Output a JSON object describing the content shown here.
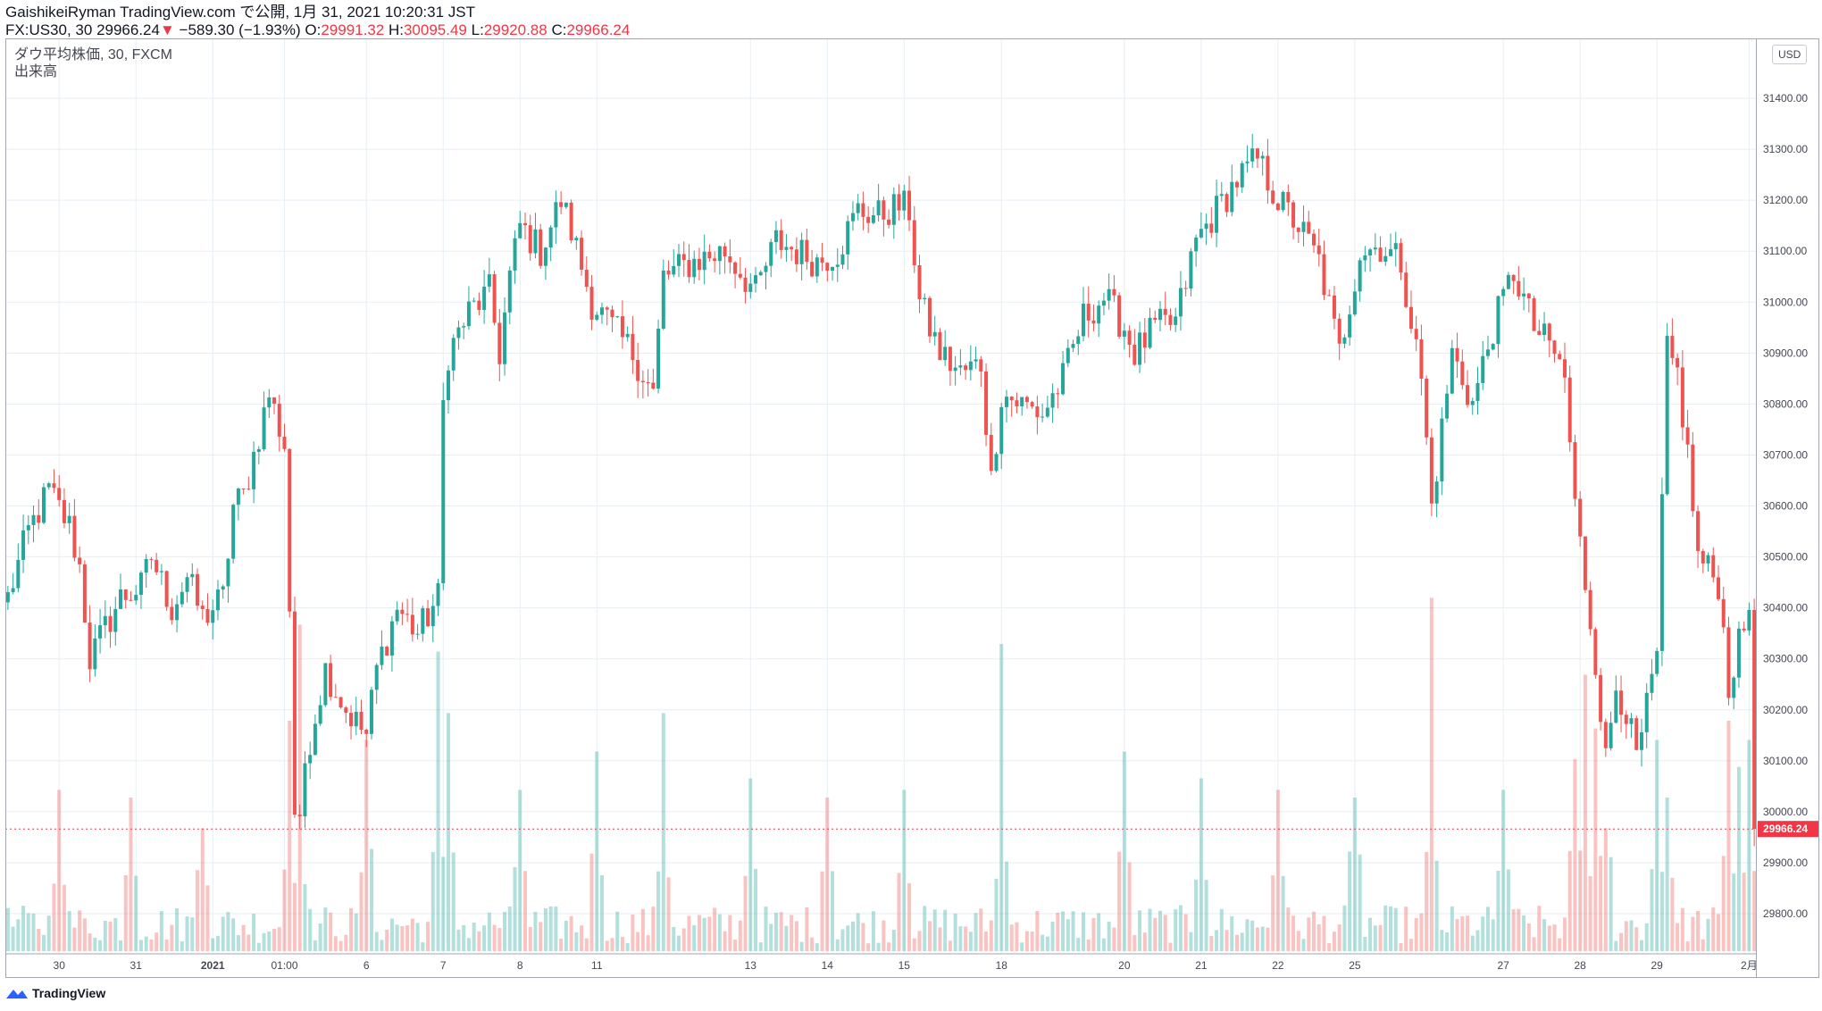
{
  "header": {
    "published": "GaishikeiRyman TradingView.com で公開, 1月 31, 2021 10:20:31 JST",
    "symbol": "FX:US30, 30",
    "last": "29966.24",
    "arrow": "▼",
    "change": "−589.30 (−1.93%)",
    "o_label": "O:",
    "o_value": "29991.32",
    "h_label": "H:",
    "h_value": "30095.49",
    "l_label": "L:",
    "l_value": "29920.88",
    "c_label": "C:",
    "c_value": "29966.24"
  },
  "legend": {
    "series": "ダウ平均株価, 30, FXCM",
    "volume": "出来高"
  },
  "axis": {
    "currency": "USD"
  },
  "footer": {
    "brand": "TradingView"
  },
  "colors": {
    "up": "#26a69a",
    "down": "#ef5350",
    "grid": "#e6eef3",
    "price_line": "#f23645"
  },
  "chart_data": {
    "type": "candlestick",
    "title": "ダウ平均株価, 30, FXCM",
    "ylim": [
      29730,
      31500
    ],
    "yticks": [
      29800,
      29900,
      30000,
      30100,
      30200,
      30300,
      30400,
      30500,
      30600,
      30700,
      30800,
      30900,
      31000,
      31100,
      31200,
      31300,
      31400
    ],
    "ytick_labels": [
      "29800.00",
      "29900.00",
      "30000.00",
      "30100.00",
      "30200.00",
      "30300.00",
      "30400.00",
      "30500.00",
      "30600.00",
      "30700.00",
      "30800.00",
      "30900.00",
      "31000.00",
      "31100.00",
      "31200.00",
      "31300.00",
      "31400.00"
    ],
    "xtick_labels": [
      "30",
      "31",
      "2021",
      "01:00",
      "6",
      "7",
      "8",
      "11",
      "13",
      "14",
      "15",
      "18",
      "20",
      "21",
      "22",
      "25",
      "27",
      "28",
      "29",
      "2月"
    ],
    "xtick_index": [
      10,
      25,
      40,
      54,
      70,
      85,
      100,
      115,
      145,
      160,
      175,
      194,
      218,
      233,
      248,
      263,
      292,
      307,
      322,
      340
    ],
    "n_bars": 342,
    "last_price": 29966.24,
    "last_price_label": "29966.24",
    "close_path": [
      [
        0,
        30420
      ],
      [
        4,
        30550
      ],
      [
        8,
        30630
      ],
      [
        12,
        30560
      ],
      [
        14,
        30480
      ],
      [
        16,
        30300
      ],
      [
        18,
        30340
      ],
      [
        22,
        30420
      ],
      [
        26,
        30440
      ],
      [
        28,
        30500
      ],
      [
        32,
        30400
      ],
      [
        35,
        30460
      ],
      [
        38,
        30380
      ],
      [
        42,
        30420
      ],
      [
        44,
        30600
      ],
      [
        46,
        30620
      ],
      [
        48,
        30700
      ],
      [
        51,
        30820
      ],
      [
        54,
        30720
      ],
      [
        55,
        30400
      ],
      [
        56,
        30000
      ],
      [
        57,
        29960
      ],
      [
        58,
        30100
      ],
      [
        62,
        30280
      ],
      [
        66,
        30200
      ],
      [
        70,
        30150
      ],
      [
        72,
        30280
      ],
      [
        76,
        30400
      ],
      [
        80,
        30350
      ],
      [
        84,
        30420
      ],
      [
        85,
        30800
      ],
      [
        86,
        30900
      ],
      [
        90,
        30980
      ],
      [
        94,
        31020
      ],
      [
        96,
        30900
      ],
      [
        98,
        31050
      ],
      [
        100,
        31150
      ],
      [
        104,
        31100
      ],
      [
        108,
        31200
      ],
      [
        110,
        31140
      ],
      [
        114,
        31000
      ],
      [
        118,
        30950
      ],
      [
        122,
        30900
      ],
      [
        126,
        30820
      ],
      [
        128,
        31050
      ],
      [
        134,
        31080
      ],
      [
        140,
        31100
      ],
      [
        146,
        31020
      ],
      [
        150,
        31120
      ],
      [
        154,
        31100
      ],
      [
        158,
        31080
      ],
      [
        162,
        31100
      ],
      [
        166,
        31180
      ],
      [
        170,
        31170
      ],
      [
        174,
        31190
      ],
      [
        176,
        31180
      ],
      [
        178,
        31000
      ],
      [
        182,
        30900
      ],
      [
        186,
        30860
      ],
      [
        190,
        30880
      ],
      [
        192,
        30650
      ],
      [
        194,
        30820
      ],
      [
        198,
        30800
      ],
      [
        202,
        30780
      ],
      [
        206,
        30850
      ],
      [
        210,
        30970
      ],
      [
        214,
        31010
      ],
      [
        218,
        30950
      ],
      [
        220,
        30900
      ],
      [
        224,
        30950
      ],
      [
        228,
        30960
      ],
      [
        232,
        31120
      ],
      [
        236,
        31180
      ],
      [
        240,
        31240
      ],
      [
        244,
        31280
      ],
      [
        248,
        31200
      ],
      [
        252,
        31150
      ],
      [
        256,
        31080
      ],
      [
        260,
        30900
      ],
      [
        264,
        31100
      ],
      [
        268,
        31110
      ],
      [
        272,
        31080
      ],
      [
        276,
        30850
      ],
      [
        278,
        30600
      ],
      [
        282,
        30900
      ],
      [
        286,
        30800
      ],
      [
        290,
        30950
      ],
      [
        294,
        31060
      ],
      [
        298,
        30950
      ],
      [
        302,
        30900
      ],
      [
        304,
        30850
      ],
      [
        306,
        30600
      ],
      [
        308,
        30450
      ],
      [
        310,
        30300
      ],
      [
        312,
        30100
      ],
      [
        314,
        30250
      ],
      [
        316,
        30200
      ],
      [
        318,
        30100
      ],
      [
        322,
        30300
      ],
      [
        324,
        30900
      ],
      [
        326,
        30860
      ],
      [
        328,
        30700
      ],
      [
        330,
        30500
      ],
      [
        334,
        30450
      ],
      [
        336,
        30250
      ],
      [
        340,
        30400
      ],
      [
        341,
        29966
      ]
    ],
    "volume_spikes": [
      [
        10,
        0.42
      ],
      [
        24,
        0.4
      ],
      [
        38,
        0.32
      ],
      [
        55,
        0.6
      ],
      [
        57,
        0.85
      ],
      [
        70,
        0.55
      ],
      [
        84,
        0.78
      ],
      [
        86,
        0.62
      ],
      [
        100,
        0.42
      ],
      [
        115,
        0.52
      ],
      [
        128,
        0.62
      ],
      [
        145,
        0.45
      ],
      [
        160,
        0.4
      ],
      [
        175,
        0.42
      ],
      [
        194,
        0.8
      ],
      [
        218,
        0.52
      ],
      [
        233,
        0.45
      ],
      [
        248,
        0.42
      ],
      [
        263,
        0.4
      ],
      [
        278,
        0.92
      ],
      [
        292,
        0.42
      ],
      [
        306,
        0.5
      ],
      [
        308,
        0.72
      ],
      [
        310,
        0.58
      ],
      [
        312,
        0.32
      ],
      [
        322,
        0.55
      ],
      [
        324,
        0.4
      ],
      [
        336,
        0.6
      ],
      [
        338,
        0.48
      ],
      [
        340,
        0.55
      ]
    ]
  }
}
